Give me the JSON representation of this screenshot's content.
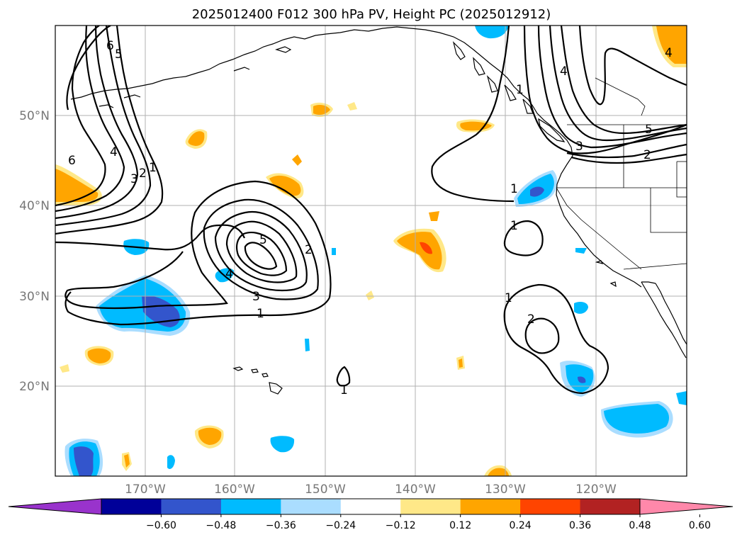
{
  "title": "2025012400 F012 300 hPa PV, Height PC (2025012912)",
  "map": {
    "lat_labels": [
      "50°N",
      "40°N",
      "30°N",
      "20°N"
    ],
    "lon_labels": [
      "170°W",
      "160°W",
      "150°W",
      "140°W",
      "130°W",
      "120°W"
    ]
  },
  "colorbar": {
    "ticks": [
      "−0.60",
      "−0.48",
      "−0.36",
      "−0.24",
      "−0.12",
      "0.12",
      "0.24",
      "0.36",
      "0.48",
      "0.60"
    ],
    "colors": [
      "#9933cc",
      "#000099",
      "#3355cc",
      "#00bbff",
      "#aaddff",
      "#ffffff",
      "#ffe888",
      "#ffa500",
      "#ff4400",
      "#b22222",
      "#ff88aa"
    ],
    "under_color": "#9933cc",
    "over_color": "#ff88aa"
  },
  "contour_labels": {
    "l1": "6",
    "l2": "5",
    "l3": "4",
    "l4": "3",
    "l5": "2",
    "l6": "1",
    "l7": "6",
    "l8": "5",
    "l9": "4",
    "l10": "3",
    "l11": "2",
    "l12": "1",
    "l13": "1",
    "l14": "1",
    "l15": "1",
    "l16": "2",
    "l17": "1",
    "l18": "4",
    "l19": "5",
    "l20": "3",
    "l21": "2",
    "l22": "4",
    "l23": "1"
  }
}
